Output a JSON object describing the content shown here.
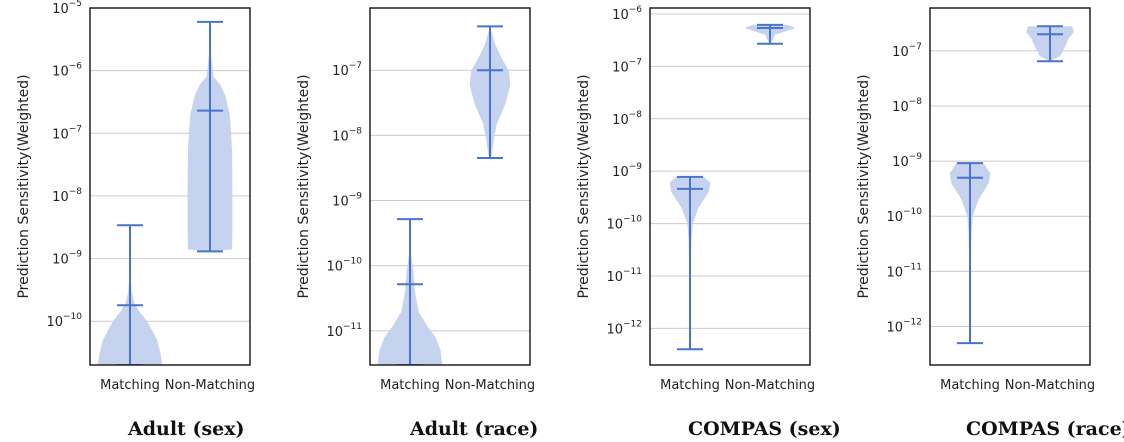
{
  "colors": {
    "violin_fill": "#c5d3ee",
    "line": "#4a74cc",
    "frame": "#222222",
    "grid": "#cccccc"
  },
  "chart_data": [
    {
      "type": "violin",
      "title": "Adult (sex)",
      "ylabel": "Prediction Sensitivity(Weighted)",
      "yscale": "log",
      "ylim": [
        2e-11,
        1e-05
      ],
      "y_ticks": [
        {
          "base": "10",
          "exp": "−10",
          "value": 1e-10
        },
        {
          "base": "10",
          "exp": "−9",
          "value": 1e-09
        },
        {
          "base": "10",
          "exp": "−8",
          "value": 1e-08
        },
        {
          "base": "10",
          "exp": "−7",
          "value": 1e-07
        },
        {
          "base": "10",
          "exp": "−6",
          "value": 1e-06
        },
        {
          "base": "10",
          "exp": "−5",
          "value": 1e-05
        }
      ],
      "categories": [
        "Matching",
        "Non-Matching"
      ],
      "groups": [
        {
          "min": 2e-11,
          "max": 3.4e-09,
          "median": 1.8e-10,
          "density": [
            [
              2e-11,
              0.95
            ],
            [
              3e-11,
              0.9
            ],
            [
              5e-11,
              0.8
            ],
            [
              8e-11,
              0.6
            ],
            [
              1e-10,
              0.5
            ],
            [
              1.5e-10,
              0.25
            ],
            [
              2e-10,
              0.12
            ],
            [
              3e-10,
              0.05
            ],
            [
              5e-10,
              0.02
            ],
            [
              1e-09,
              0.01
            ],
            [
              3.4e-09,
              0.0
            ]
          ]
        },
        {
          "min": 1.3e-09,
          "max": 6e-06,
          "median": 2.3e-07,
          "density": [
            [
              1.3e-09,
              0.0
            ],
            [
              1.4e-09,
              0.65
            ],
            [
              3e-09,
              0.66
            ],
            [
              1e-08,
              0.66
            ],
            [
              5e-08,
              0.65
            ],
            [
              1e-07,
              0.62
            ],
            [
              2e-07,
              0.58
            ],
            [
              4e-07,
              0.45
            ],
            [
              6e-07,
              0.3
            ],
            [
              8e-07,
              0.1
            ],
            [
              2e-06,
              0.02
            ],
            [
              6e-06,
              0.0
            ]
          ]
        }
      ]
    },
    {
      "type": "violin",
      "title": "Adult (race)",
      "ylabel": "Prediction Sensitivity(Weighted)",
      "yscale": "log",
      "ylim": [
        3e-12,
        9e-07
      ],
      "y_ticks": [
        {
          "base": "10",
          "exp": "−11",
          "value": 1e-11
        },
        {
          "base": "10",
          "exp": "−10",
          "value": 1e-10
        },
        {
          "base": "10",
          "exp": "−9",
          "value": 1e-09
        },
        {
          "base": "10",
          "exp": "−8",
          "value": 1e-08
        },
        {
          "base": "10",
          "exp": "−7",
          "value": 1e-07
        }
      ],
      "categories": [
        "Matching",
        "Non-Matching"
      ],
      "groups": [
        {
          "min": 3e-12,
          "max": 5.2e-10,
          "median": 5.2e-11,
          "density": [
            [
              3e-12,
              0.95
            ],
            [
              5e-12,
              0.9
            ],
            [
              8e-12,
              0.75
            ],
            [
              1.2e-11,
              0.5
            ],
            [
              2e-11,
              0.25
            ],
            [
              4e-11,
              0.15
            ],
            [
              8e-11,
              0.1
            ],
            [
              1.5e-10,
              0.03
            ],
            [
              5.2e-10,
              0.0
            ]
          ]
        },
        {
          "min": 4.5e-09,
          "max": 4.7e-07,
          "median": 1e-07,
          "density": [
            [
              4.5e-09,
              0.0
            ],
            [
              5e-09,
              0.05
            ],
            [
              8e-09,
              0.1
            ],
            [
              1.5e-08,
              0.2
            ],
            [
              3e-08,
              0.45
            ],
            [
              6e-08,
              0.6
            ],
            [
              1e-07,
              0.55
            ],
            [
              1.5e-07,
              0.35
            ],
            [
              2.5e-07,
              0.15
            ],
            [
              4.7e-07,
              0.0
            ]
          ]
        }
      ]
    },
    {
      "type": "violin",
      "title": "COMPAS (sex)",
      "ylabel": "Prediction Sensitivity(Weighted)",
      "yscale": "log",
      "ylim": [
        2e-13,
        1.3e-06
      ],
      "y_ticks": [
        {
          "base": "10",
          "exp": "−12",
          "value": 1e-12
        },
        {
          "base": "10",
          "exp": "−11",
          "value": 1e-11
        },
        {
          "base": "10",
          "exp": "−10",
          "value": 1e-10
        },
        {
          "base": "10",
          "exp": "−9",
          "value": 1e-09
        },
        {
          "base": "10",
          "exp": "−8",
          "value": 1e-08
        },
        {
          "base": "10",
          "exp": "−7",
          "value": 1e-07
        },
        {
          "base": "10",
          "exp": "−6",
          "value": 1e-06
        }
      ],
      "categories": [
        "Matching",
        "Non-Matching"
      ],
      "groups": [
        {
          "min": 4e-13,
          "max": 7.8e-10,
          "median": 4.6e-10,
          "density": [
            [
              4e-13,
              0.0
            ],
            [
              1e-12,
              0.01
            ],
            [
              1e-11,
              0.02
            ],
            [
              5e-11,
              0.04
            ],
            [
              1e-10,
              0.08
            ],
            [
              2e-10,
              0.25
            ],
            [
              4e-10,
              0.55
            ],
            [
              6e-10,
              0.6
            ],
            [
              7.8e-10,
              0.4
            ]
          ]
        },
        {
          "min": 2.7e-07,
          "max": 6.2e-07,
          "median": 5.4e-07,
          "density": [
            [
              2.7e-07,
              0.0
            ],
            [
              3.2e-07,
              0.08
            ],
            [
              4e-07,
              0.15
            ],
            [
              4.8e-07,
              0.5
            ],
            [
              5.4e-07,
              0.75
            ],
            [
              6.2e-07,
              0.5
            ]
          ]
        }
      ]
    },
    {
      "type": "violin",
      "title": "COMPAS (race)",
      "ylabel": "Prediction Sensitivity(Weighted)",
      "yscale": "log",
      "ylim": [
        2e-13,
        6e-07
      ],
      "y_ticks": [
        {
          "base": "10",
          "exp": "−12",
          "value": 1e-12
        },
        {
          "base": "10",
          "exp": "−11",
          "value": 1e-11
        },
        {
          "base": "10",
          "exp": "−10",
          "value": 1e-10
        },
        {
          "base": "10",
          "exp": "−9",
          "value": 1e-09
        },
        {
          "base": "10",
          "exp": "−8",
          "value": 1e-08
        },
        {
          "base": "10",
          "exp": "−7",
          "value": 1e-07
        }
      ],
      "categories": [
        "Matching",
        "Non-Matching"
      ],
      "groups": [
        {
          "min": 5e-13,
          "max": 9.2e-10,
          "median": 5e-10,
          "density": [
            [
              5e-13,
              0.0
            ],
            [
              1e-12,
              0.01
            ],
            [
              1e-11,
              0.02
            ],
            [
              5e-11,
              0.04
            ],
            [
              1e-10,
              0.08
            ],
            [
              2e-10,
              0.25
            ],
            [
              4e-10,
              0.55
            ],
            [
              6e-10,
              0.6
            ],
            [
              9.2e-10,
              0.4
            ]
          ]
        },
        {
          "min": 6.5e-08,
          "max": 2.8e-07,
          "median": 2e-07,
          "density": [
            [
              6.5e-08,
              0.0
            ],
            [
              8e-08,
              0.3
            ],
            [
              1.2e-07,
              0.45
            ],
            [
              1.7e-07,
              0.55
            ],
            [
              2.2e-07,
              0.7
            ],
            [
              2.8e-07,
              0.65
            ]
          ]
        }
      ]
    }
  ]
}
